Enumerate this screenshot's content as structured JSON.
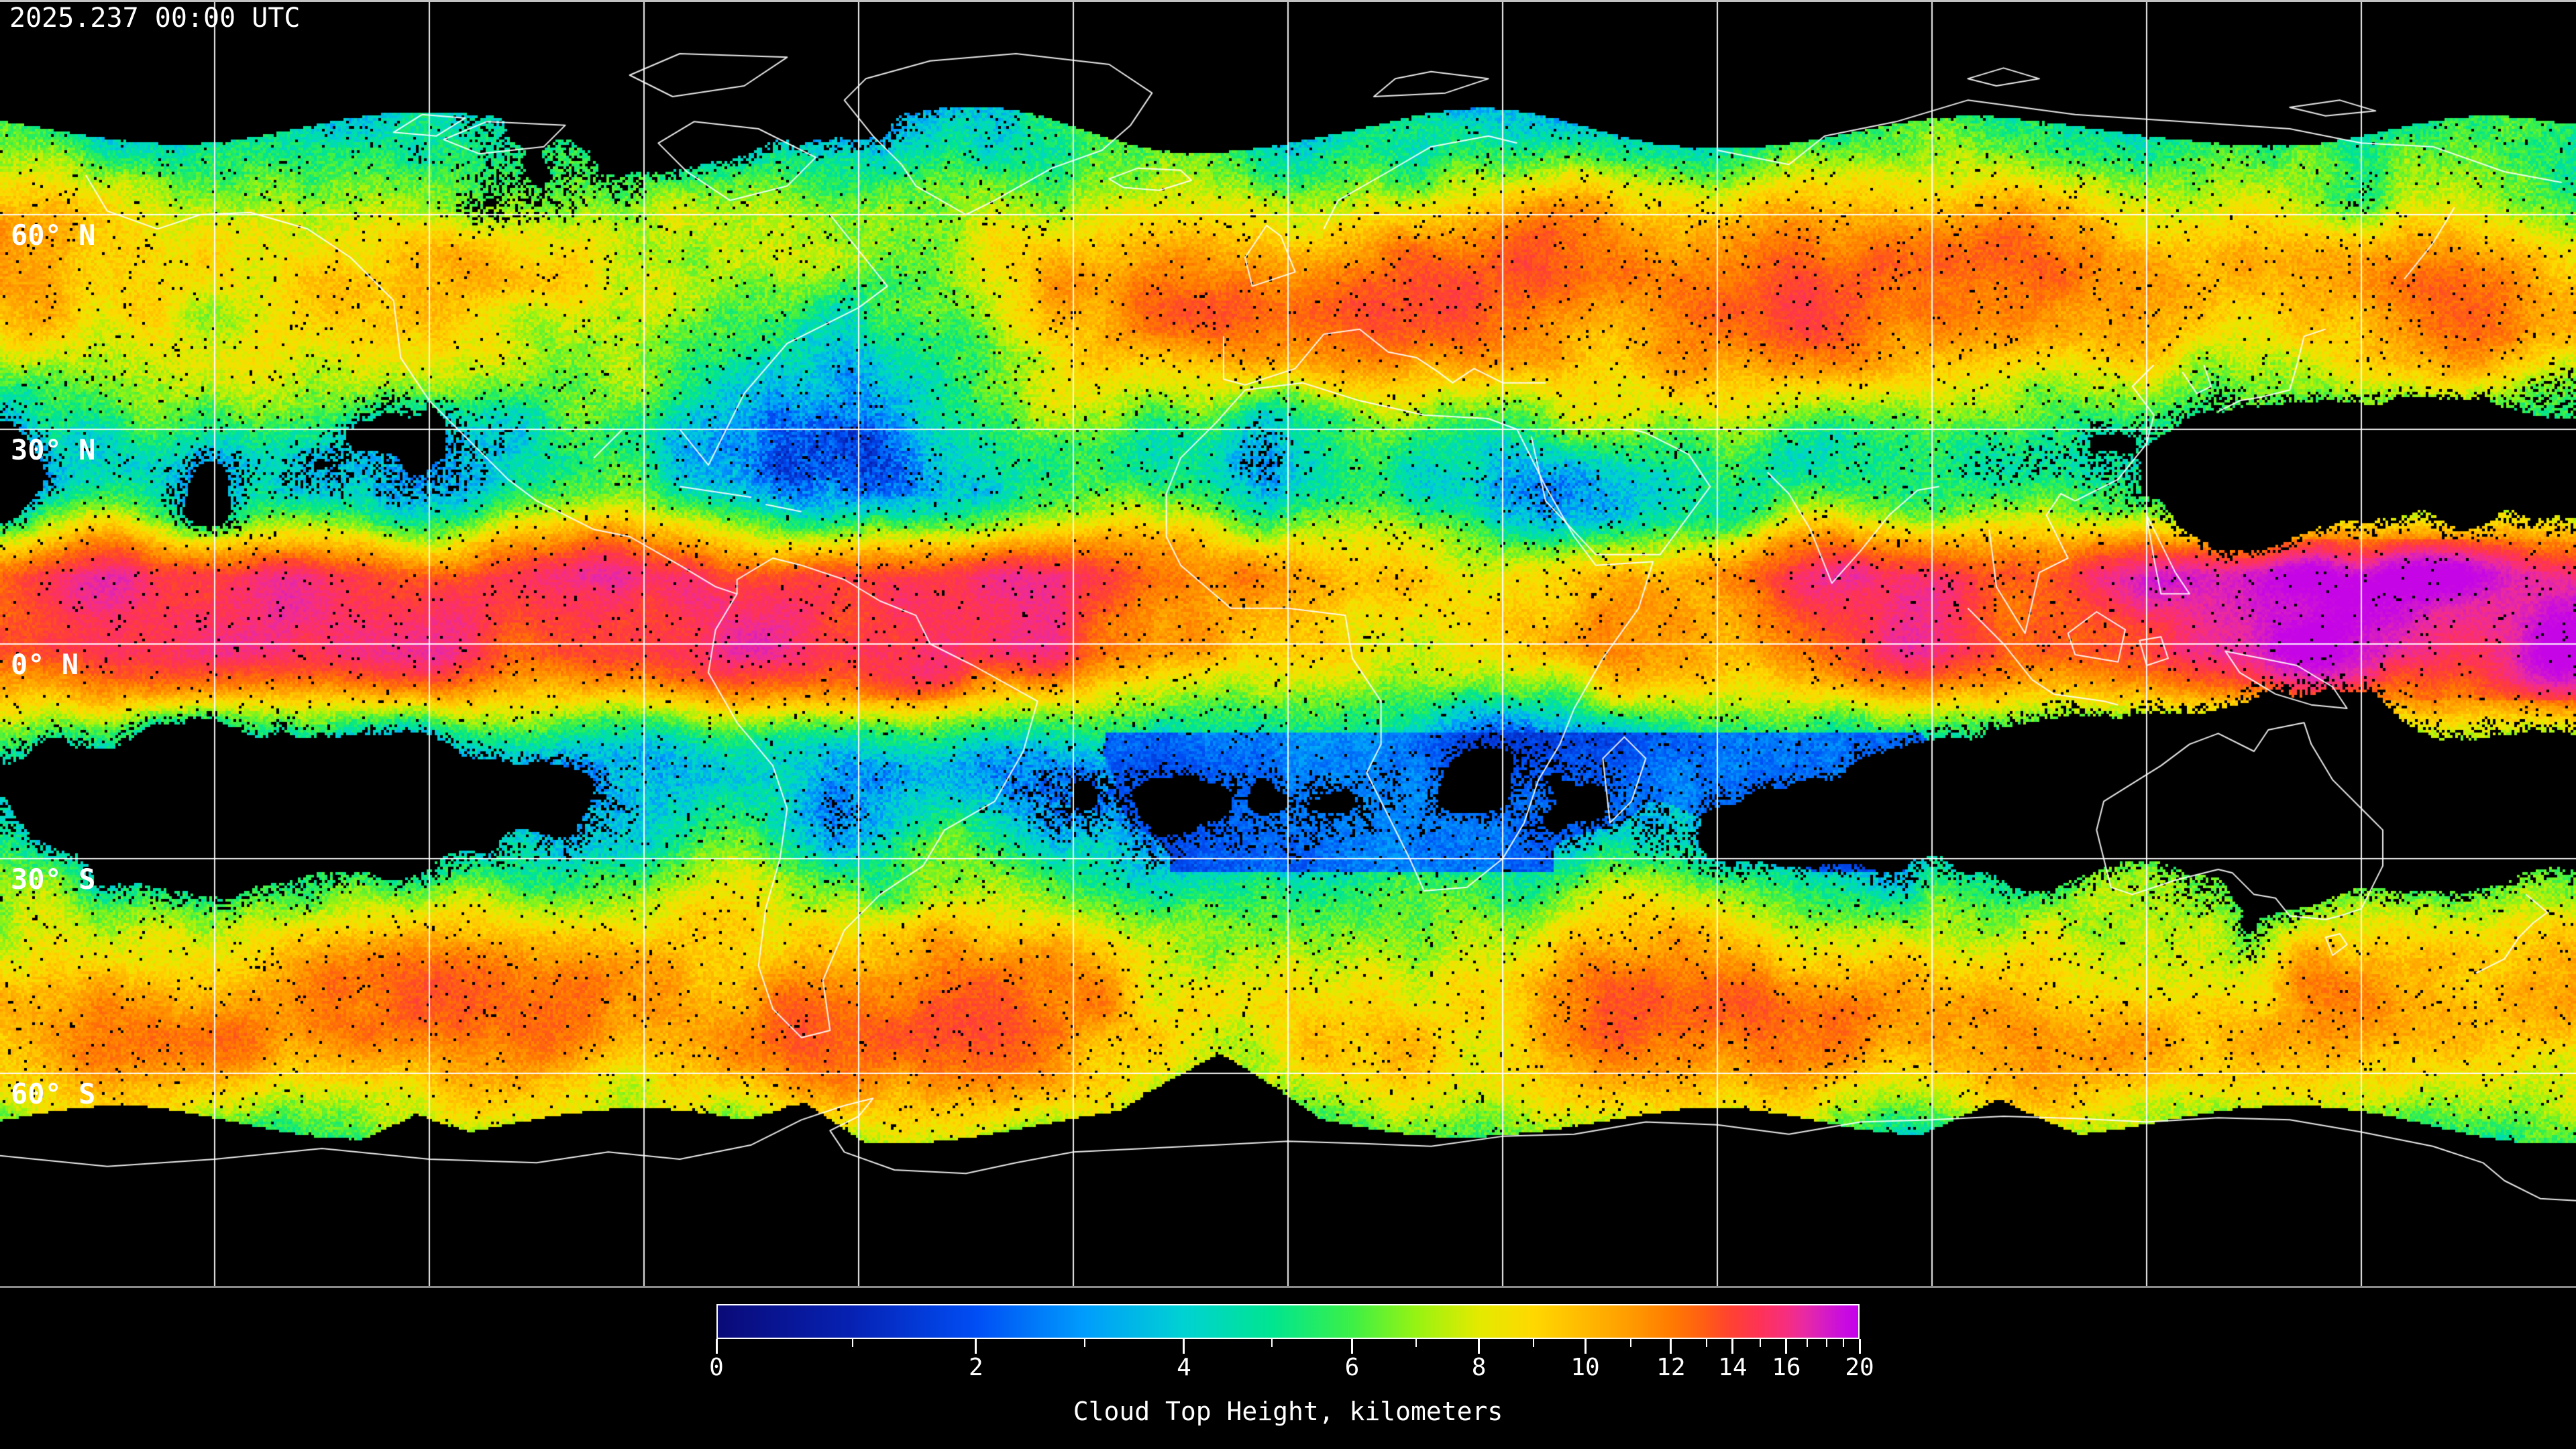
{
  "header": {
    "timestamp": "2025.237 00:00 UTC"
  },
  "map": {
    "background_color": "#000000",
    "gridline_color": "#ffffff",
    "coastline_color": "#ffffff",
    "border_top_color": "#c2c2c2",
    "border_bottom_color": "#8a8a8a",
    "lon_gridline_spacing_deg": 30,
    "lat_gridline_spacing_deg": 30,
    "lat_labels": [
      {
        "text": "60° N",
        "lat": 60
      },
      {
        "text": "30° N",
        "lat": 30
      },
      {
        "text": "0° N",
        "lat": 0
      },
      {
        "text": "30° S",
        "lat": -30
      },
      {
        "text": "60° S",
        "lat": -60
      }
    ]
  },
  "colorbar": {
    "label": "Cloud Top Height, kilometers",
    "min_value": 0,
    "max_value": 20,
    "tick_values": [
      0,
      2,
      4,
      6,
      8,
      10,
      12,
      14,
      16,
      20
    ],
    "tick_labels": [
      "0",
      "2",
      "4",
      "6",
      "8",
      "10",
      "12",
      "14",
      "16",
      "20"
    ],
    "minor_tick_values": [
      1,
      3,
      5,
      7,
      9,
      11,
      13,
      15,
      17,
      18,
      19
    ],
    "value_fractions": [
      0.0,
      0.119,
      0.227,
      0.322,
      0.409,
      0.486,
      0.556,
      0.612,
      0.667,
      0.715,
      0.76,
      0.8,
      0.835,
      0.866,
      0.889,
      0.913,
      0.936,
      0.954,
      0.971,
      0.986,
      1.0
    ],
    "height_colors": [
      "#0a0a78",
      "#0622b4",
      "#004ef5",
      "#009dfc",
      "#00d2d2",
      "#00e590",
      "#3cf046",
      "#96f312",
      "#e3ea00",
      "#ffd800",
      "#ffb900",
      "#ff9b00",
      "#ff7c00",
      "#ff5c15",
      "#ff4133",
      "#fe3355",
      "#f72e7d",
      "#e729a5",
      "#d51bc5",
      "#ca0ddd",
      "#c402ea"
    ]
  }
}
